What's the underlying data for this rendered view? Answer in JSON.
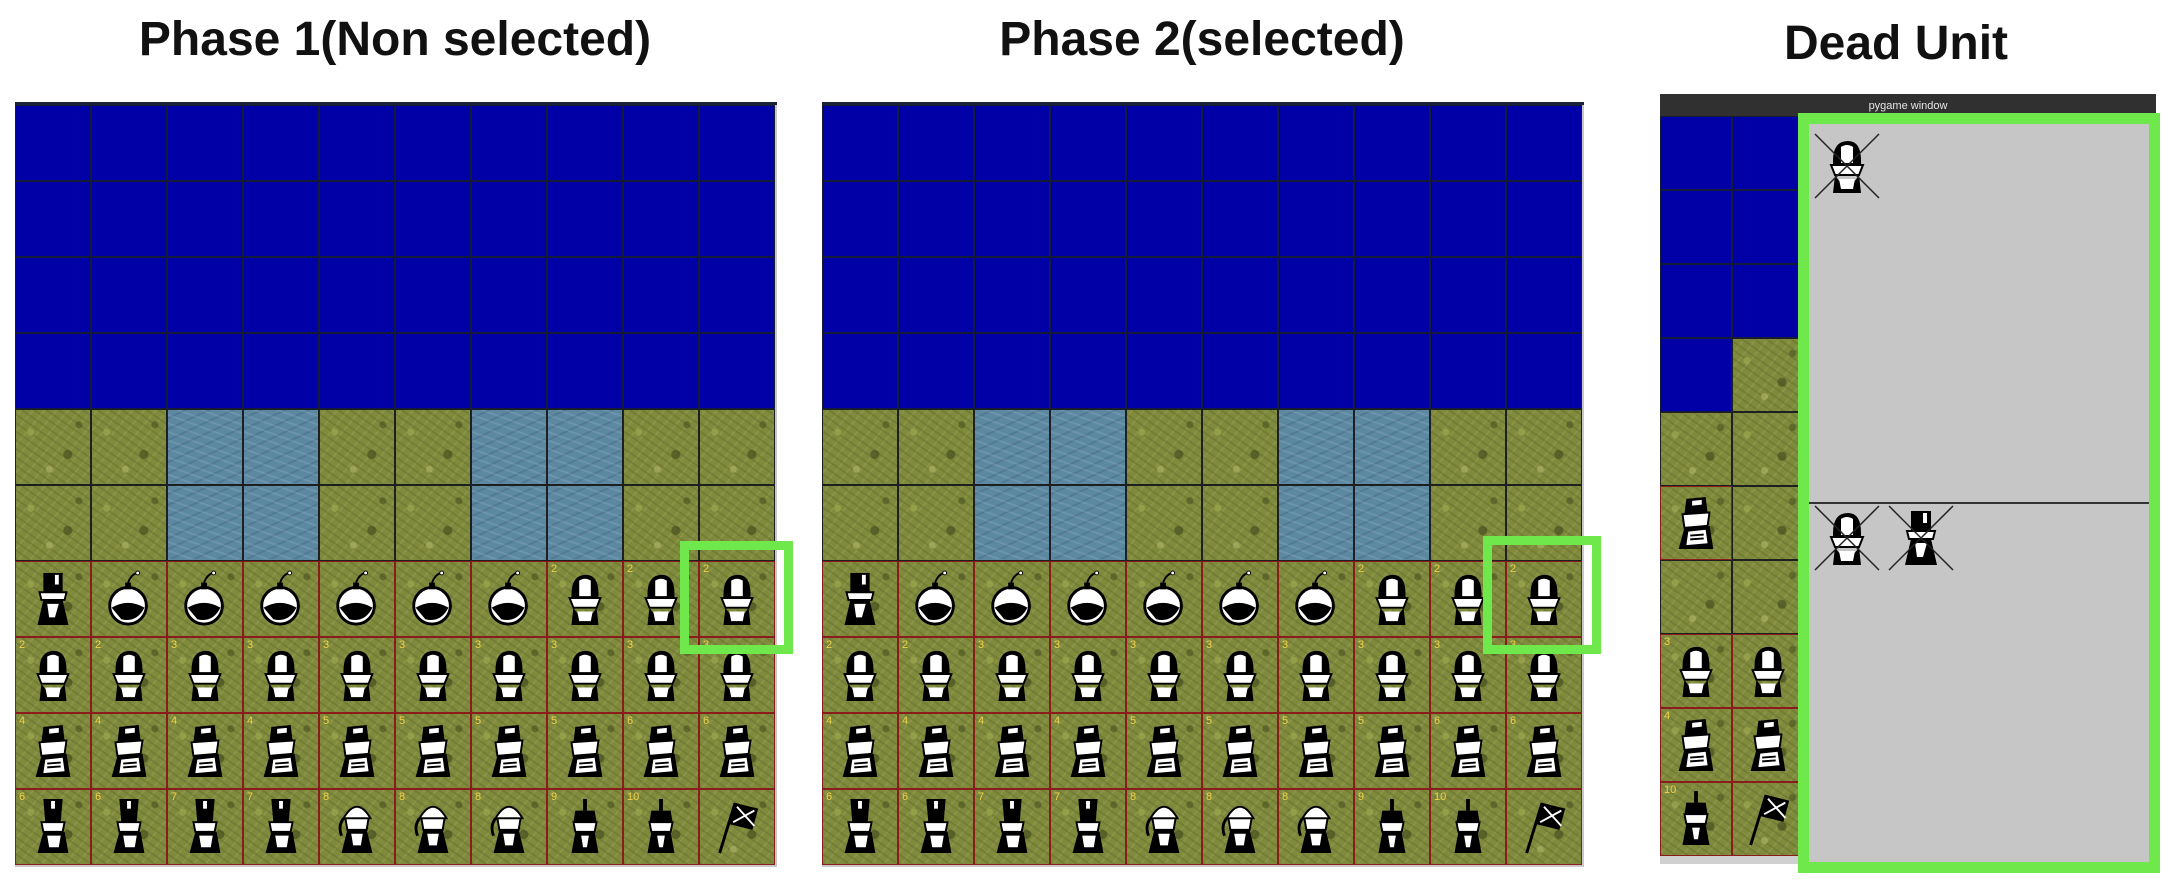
{
  "titles": {
    "phase1": "Phase 1(Non selected)",
    "phase2": "Phase 2(selected)",
    "dead": "Dead Unit"
  },
  "window_title": "pygame window",
  "colors": {
    "sea": "#0000a6",
    "grass": "#7f8a3c",
    "lake": "#5c88a2",
    "unit_border": "#8a1c1c",
    "highlight": "#6ee84a",
    "dead_panel": "#c6c6c6"
  },
  "grid": {
    "rows": 10,
    "cols": 10
  },
  "terrain_rows": [
    "SSSSSSSSSS",
    "SSSSSSSSSS",
    "SSSSSSSSSS",
    "SSSSSSSSSS",
    "GGLLGGLLGG",
    "GGLLGGLLGG",
    "UUUUUUUUUU",
    "UUUUUUUUUU",
    "UUUUUUUUUU",
    "UUUUUUUUUU"
  ],
  "unit_icons": [
    [
      "soldier-icon",
      "bomb-icon",
      "bomb-icon",
      "bomb-icon",
      "bomb-icon",
      "bomb-icon",
      "bomb-icon",
      "helmet-icon",
      "helmet-icon",
      "helmet-icon"
    ],
    [
      "helmet-icon",
      "helmet-icon",
      "helmet-icon",
      "helmet-icon",
      "helmet-icon",
      "helmet-icon",
      "helmet-icon",
      "helmet-icon",
      "helmet-icon",
      "helmet-icon"
    ],
    [
      "officer-icon",
      "officer-icon",
      "officer-icon",
      "officer-icon",
      "officer-icon",
      "officer-icon",
      "officer-icon",
      "officer-icon",
      "officer-icon",
      "officer-icon"
    ],
    [
      "shako-icon",
      "shako-icon",
      "shako-icon",
      "shako-icon",
      "general-icon",
      "general-icon",
      "general-icon",
      "marshal-icon",
      "marshal-icon",
      "flag-icon"
    ]
  ],
  "unit_ranks": [
    [
      "",
      "",
      "",
      "",
      "",
      "",
      "",
      "2",
      "2",
      "2"
    ],
    [
      "2",
      "2",
      "3",
      "3",
      "3",
      "3",
      "3",
      "3",
      "3",
      "3"
    ],
    [
      "4",
      "4",
      "4",
      "4",
      "5",
      "5",
      "5",
      "5",
      "6",
      "6"
    ],
    [
      "6",
      "6",
      "7",
      "7",
      "8",
      "8",
      "8",
      "9",
      "10",
      ""
    ]
  ],
  "dead_units": {
    "top": [
      "helmet-icon"
    ],
    "bottom": [
      "helmet-icon",
      "soldier-icon"
    ]
  },
  "panel3": {
    "visible_cols": 2,
    "rows": [
      [
        "S",
        "S"
      ],
      [
        "S",
        "S"
      ],
      [
        "S",
        "S"
      ],
      [
        "S",
        "G"
      ],
      [
        "G",
        "G"
      ],
      [
        "U:officer-icon",
        "G"
      ],
      [
        "G",
        "G"
      ],
      [
        "U:helmet-icon",
        "U:helmet-icon"
      ],
      [
        "U:officer-icon",
        "U:officer-icon"
      ],
      [
        "U:marshal-icon",
        "U:flag-icon"
      ]
    ],
    "ranks": [
      "",
      "",
      "",
      "",
      "",
      "",
      "",
      "3",
      "4",
      "10"
    ]
  }
}
